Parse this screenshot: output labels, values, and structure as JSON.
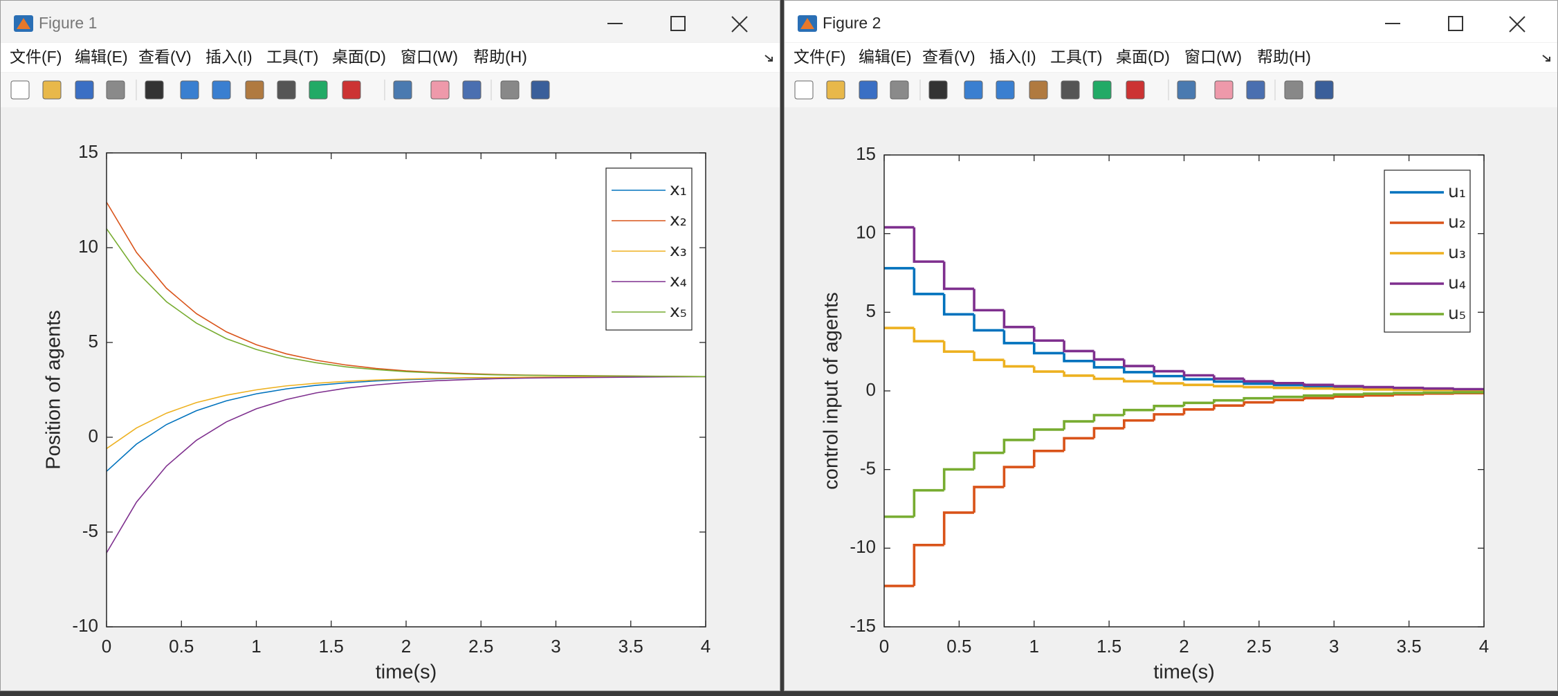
{
  "windows": [
    {
      "title": "Figure 1",
      "menu": [
        "文件(F)",
        "编辑(E)",
        "查看(V)",
        "插入(I)",
        "工具(T)",
        "桌面(D)",
        "窗口(W)",
        "帮助(H)"
      ]
    },
    {
      "title": "Figure 2",
      "menu": [
        "文件(F)",
        "编辑(E)",
        "查看(V)",
        "插入(I)",
        "工具(T)",
        "桌面(D)",
        "窗口(W)",
        "帮助(H)"
      ]
    }
  ],
  "chart_data": [
    {
      "type": "line",
      "xlabel": "time(s)",
      "ylabel": "Position of agents",
      "x": [
        0,
        0.2,
        0.4,
        0.6,
        0.8,
        1,
        1.2,
        1.4,
        1.6,
        1.8,
        2,
        2.2,
        2.4,
        2.6,
        2.8,
        3,
        4
      ],
      "xlim": [
        0,
        4
      ],
      "xticks": [
        0,
        0.5,
        1,
        1.5,
        2,
        2.5,
        3,
        3.5,
        4
      ],
      "ylim": [
        -10,
        15
      ],
      "yticks": [
        -10,
        -5,
        0,
        5,
        10,
        15
      ],
      "legend": "northeast",
      "series": [
        {
          "name": "x₁",
          "color": "#0072BD",
          "values": [
            -1.8,
            -0.36,
            0.67,
            1.4,
            1.92,
            2.29,
            2.55,
            2.74,
            2.87,
            2.97,
            3.04,
            3.08,
            3.12,
            3.14,
            3.16,
            3.17,
            3.2
          ]
        },
        {
          "name": "x₂",
          "color": "#D95319",
          "values": [
            12.4,
            9.75,
            7.86,
            6.52,
            5.56,
            4.88,
            4.4,
            4.06,
            3.81,
            3.63,
            3.5,
            3.42,
            3.36,
            3.31,
            3.28,
            3.26,
            3.2
          ]
        },
        {
          "name": "x₃",
          "color": "#EDB120",
          "values": [
            -0.6,
            0.49,
            1.27,
            1.83,
            2.22,
            2.5,
            2.71,
            2.85,
            2.95,
            3.02,
            3.07,
            3.11,
            3.14,
            3.15,
            3.17,
            3.18,
            3.2
          ]
        },
        {
          "name": "x₄",
          "color": "#7E2F8E",
          "values": [
            -6.1,
            -3.42,
            -1.52,
            -0.16,
            0.81,
            1.5,
            1.99,
            2.34,
            2.59,
            2.76,
            2.89,
            2.98,
            3.04,
            3.09,
            3.12,
            3.14,
            3.2
          ]
        },
        {
          "name": "x₅",
          "color": "#77AC30",
          "values": [
            11,
            8.75,
            7.15,
            6.02,
            5.2,
            4.63,
            4.21,
            3.93,
            3.71,
            3.57,
            3.46,
            3.39,
            3.33,
            3.29,
            3.27,
            3.25,
            3.2
          ]
        }
      ]
    },
    {
      "type": "stairs",
      "xlabel": "time(s)",
      "ylabel": "control input of agents",
      "x": [
        0,
        0.2,
        0.4,
        0.6,
        0.8,
        1,
        1.2,
        1.4,
        1.6,
        1.8,
        2,
        2.2,
        2.4,
        2.6,
        2.8,
        3,
        3.2,
        3.4,
        3.6,
        3.8
      ],
      "xlim": [
        0,
        4
      ],
      "xticks": [
        0,
        0.5,
        1,
        1.5,
        2,
        2.5,
        3,
        3.5,
        4
      ],
      "ylim": [
        -15,
        15
      ],
      "yticks": [
        -15,
        -10,
        -5,
        0,
        5,
        10,
        15
      ],
      "legend": "northeast",
      "series": [
        {
          "name": "u₁",
          "color": "#0072BD",
          "values": [
            7.8,
            6.16,
            4.87,
            3.85,
            3.04,
            2.4,
            1.9,
            1.5,
            1.19,
            0.94,
            0.74,
            0.59,
            0.46,
            0.37,
            0.29,
            0.23,
            0.18,
            0.14,
            0.11,
            0.09
          ]
        },
        {
          "name": "u₂",
          "color": "#D95319",
          "values": [
            -12.4,
            -9.8,
            -7.74,
            -6.11,
            -4.84,
            -3.82,
            -3.01,
            -2.38,
            -1.88,
            -1.49,
            -1.18,
            -0.93,
            -0.73,
            -0.58,
            -0.46,
            -0.36,
            -0.29,
            -0.22,
            -0.17,
            -0.14
          ]
        },
        {
          "name": "u₃",
          "color": "#EDB120",
          "values": [
            4,
            3.16,
            2.5,
            1.97,
            1.56,
            1.23,
            0.97,
            0.77,
            0.61,
            0.48,
            0.38,
            0.3,
            0.24,
            0.19,
            0.15,
            0.12,
            0.09,
            0.07,
            0.06,
            0.04
          ]
        },
        {
          "name": "u₄",
          "color": "#7E2F8E",
          "values": [
            10.4,
            8.22,
            6.49,
            5.13,
            4.06,
            3.2,
            2.53,
            2,
            1.58,
            1.25,
            0.99,
            0.78,
            0.61,
            0.49,
            0.38,
            0.3,
            0.24,
            0.19,
            0.15,
            0.11
          ]
        },
        {
          "name": "u₅",
          "color": "#77AC30",
          "values": [
            -8,
            -6.32,
            -4.99,
            -3.94,
            -3.12,
            -2.46,
            -1.94,
            -1.54,
            -1.22,
            -0.96,
            -0.76,
            -0.6,
            -0.47,
            -0.38,
            -0.3,
            -0.23,
            -0.18,
            -0.14,
            -0.11,
            -0.09
          ]
        }
      ]
    }
  ]
}
